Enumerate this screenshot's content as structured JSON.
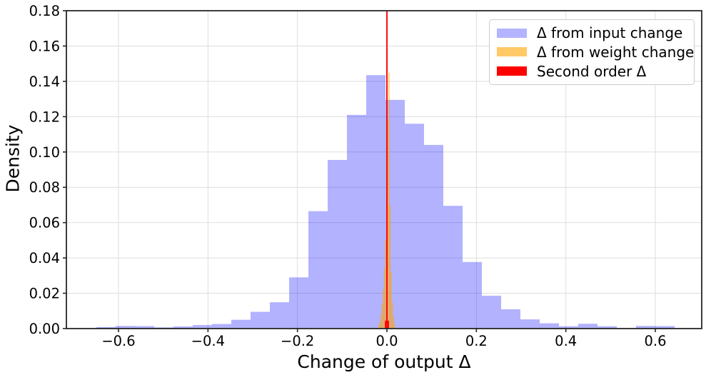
{
  "figure": {
    "background": "#ffffff"
  },
  "chart_data": {
    "type": "bar",
    "subtype": "overlaid-histograms",
    "title": "",
    "xlabel": "Change of output Δ",
    "ylabel": "Density",
    "xlim": [
      -0.7165,
      0.7037
    ],
    "ylim": [
      0,
      0.18
    ],
    "xticks": [
      -0.6,
      -0.4,
      -0.2,
      0.0,
      0.2,
      0.4,
      0.6
    ],
    "xtick_labels": [
      "−0.6",
      "−0.4",
      "−0.2",
      "0.0",
      "0.2",
      "0.4",
      "0.6"
    ],
    "yticks": [
      0.0,
      0.02,
      0.04,
      0.06,
      0.08,
      0.1,
      0.12,
      0.14,
      0.16,
      0.18
    ],
    "ytick_labels": [
      "0.00",
      "0.02",
      "0.04",
      "0.06",
      "0.08",
      "0.10",
      "0.12",
      "0.14",
      "0.16",
      "0.18"
    ],
    "grid": true,
    "grid_color": "#dedede",
    "spine_color": "#262626",
    "tick_color": "#262626",
    "legend_position": "upper right",
    "legend_border_color": "#cccccc",
    "series": [
      {
        "name": "Δ from input change",
        "color": "rgba(0,0,255,0.3)",
        "legend_color": "#b3b3ff",
        "bin_start": -0.6494,
        "bin_width": 0.04308,
        "heights": [
          0.0009,
          0.0015,
          0.0014,
          0.0007,
          0.0012,
          0.002,
          0.0026,
          0.005,
          0.0095,
          0.0149,
          0.029,
          0.0665,
          0.0955,
          0.121,
          0.1435,
          0.1295,
          0.116,
          0.104,
          0.0695,
          0.0377,
          0.0186,
          0.0109,
          0.0052,
          0.003,
          0.0013,
          0.0027,
          0.0013,
          0.0,
          0.0015,
          0.0014
        ]
      },
      {
        "name": "Δ from weight change",
        "color": "rgba(255,165,0,0.6)",
        "legend_color": "#ffc966",
        "bin_start": -0.01925,
        "bin_width": 0.0025,
        "heights": [
          0.002,
          0.004,
          0.008,
          0.014,
          0.022,
          0.034,
          0.05,
          0.08,
          0.118,
          0.145,
          0.07,
          0.032,
          0.015,
          0.007,
          0.0025
        ]
      },
      {
        "name": "Second order Δ",
        "color": "#ff0000",
        "legend_color": "#ff0000",
        "bin_start": -0.0045,
        "bin_width": 0.003,
        "heights": [
          0.0045,
          0.18,
          0.0045
        ],
        "note_vline_x": 0.0
      }
    ]
  }
}
